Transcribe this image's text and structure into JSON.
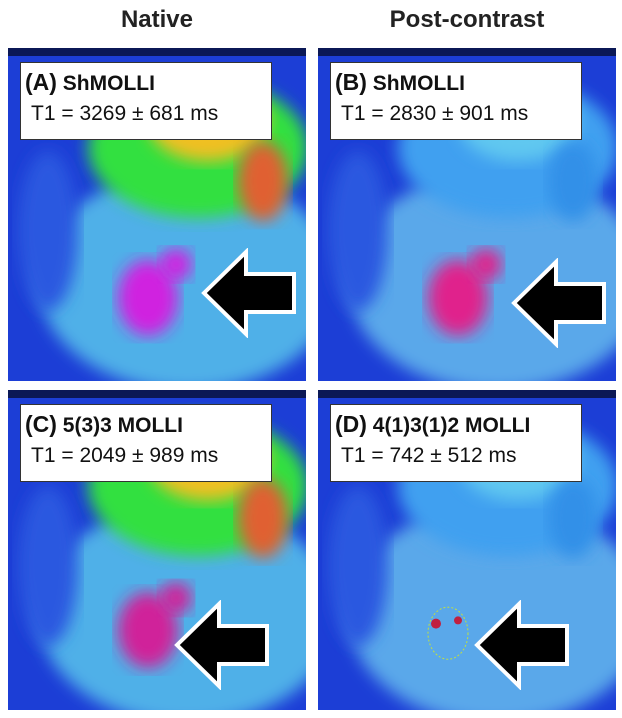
{
  "headers": [
    "Native",
    "Post-contrast"
  ],
  "panels": [
    {
      "letter": "(A)",
      "sequence": "ShMOLLI",
      "t1": "T1 = 3269 ± 681 ms"
    },
    {
      "letter": "(B)",
      "sequence": "ShMOLLI",
      "t1": "T1 = 2830 ± 901 ms"
    },
    {
      "letter": "(C)",
      "sequence": "5(3)3 MOLLI",
      "t1": "T1 = 2049 ± 989 ms"
    },
    {
      "letter": "(D)",
      "sequence": "4(1)3(1)2 MOLLI",
      "t1": "T1 = 742 ± 512 ms"
    }
  ]
}
